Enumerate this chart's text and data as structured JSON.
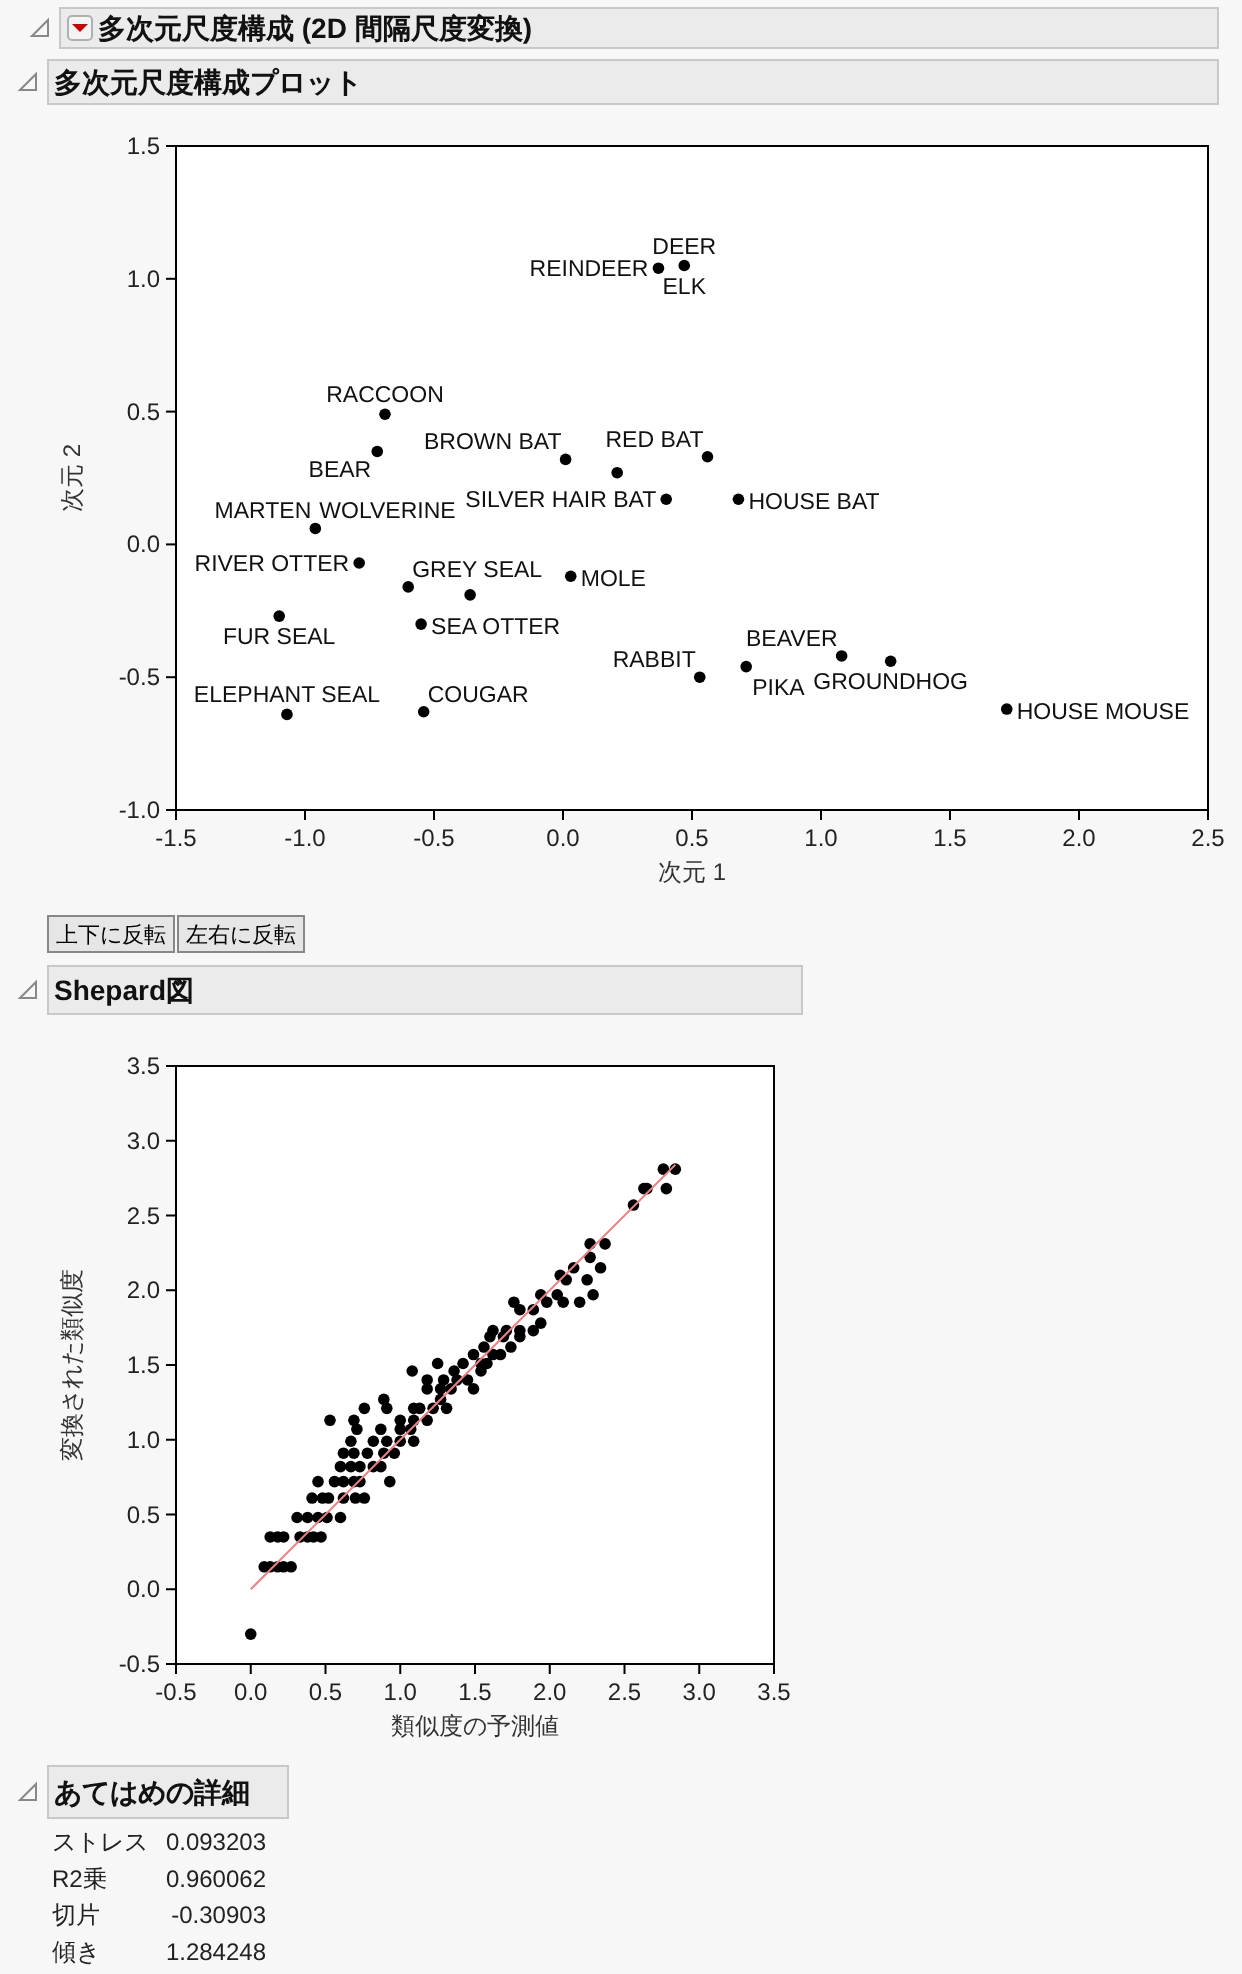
{
  "chart_data": [
    {
      "type": "scatter",
      "title": "多次元尺度構成 (2D 間隔尺度変換)",
      "subtitle": "多次元尺度構成プロット",
      "xlabel": "次元 1",
      "ylabel": "次元 2",
      "xlim": [
        -1.5,
        2.5
      ],
      "ylim": [
        -1.0,
        1.5
      ],
      "xticks": [
        {
          "value": -1.5,
          "label": "-1.5"
        },
        {
          "value": -1.0,
          "label": "-1.0"
        },
        {
          "value": -0.5,
          "label": "-0.5"
        },
        {
          "value": 0.0,
          "label": "0.0"
        },
        {
          "value": 0.5,
          "label": "0.5"
        },
        {
          "value": 1.0,
          "label": "1.0"
        },
        {
          "value": 1.5,
          "label": "1.5"
        },
        {
          "value": 2.0,
          "label": "2.0"
        },
        {
          "value": 2.5,
          "label": "2.5"
        }
      ],
      "yticks": [
        {
          "value": -1.0,
          "label": "-1.0"
        },
        {
          "value": -0.5,
          "label": "-0.5"
        },
        {
          "value": 0.0,
          "label": "0.0"
        },
        {
          "value": 0.5,
          "label": "0.5"
        },
        {
          "value": 1.0,
          "label": "1.0"
        },
        {
          "value": 1.5,
          "label": "1.5"
        }
      ],
      "marker": "circle",
      "grid": false,
      "series": [
        {
          "color": "#000000",
          "x": [
            0.47,
            0.37,
            -0.69,
            -0.72,
            0.01,
            0.21,
            0.56,
            0.4,
            0.68,
            -0.96,
            -0.79,
            -0.6,
            -0.36,
            0.03,
            -1.1,
            -0.55,
            0.53,
            0.71,
            1.08,
            1.27,
            -1.07,
            -0.54,
            1.72
          ],
          "values": [
            1.05,
            1.04,
            0.49,
            0.35,
            0.32,
            0.27,
            0.33,
            0.17,
            0.17,
            0.06,
            -0.07,
            -0.16,
            -0.19,
            -0.12,
            -0.27,
            -0.3,
            -0.5,
            -0.46,
            -0.42,
            -0.44,
            -0.64,
            -0.63,
            -0.62
          ]
        }
      ],
      "annotations": [
        {
          "text": "DEER",
          "x": 0.47,
          "y": 1.05
        },
        {
          "text": "ELK",
          "x": 0.47,
          "y": 1.05
        },
        {
          "text": "REINDEER",
          "x": 0.37,
          "y": 1.04
        },
        {
          "text": "RACCOON",
          "x": -0.69,
          "y": 0.49
        },
        {
          "text": "BEAR",
          "x": -0.72,
          "y": 0.35
        },
        {
          "text": "BROWN BAT",
          "x": 0.01,
          "y": 0.32
        },
        {
          "text": "RED BAT",
          "x": 0.56,
          "y": 0.33
        },
        {
          "text": "SILVER HAIR BAT",
          "x": 0.4,
          "y": 0.17
        },
        {
          "text": "HOUSE BAT",
          "x": 0.68,
          "y": 0.17
        },
        {
          "text": "MARTEN",
          "x": -0.96,
          "y": 0.06
        },
        {
          "text": "WOLVERINE",
          "x": -0.96,
          "y": 0.06
        },
        {
          "text": "RIVER OTTER",
          "x": -0.79,
          "y": -0.07
        },
        {
          "text": "GREY SEAL",
          "x": -0.6,
          "y": -0.16
        },
        {
          "text": "MOLE",
          "x": 0.03,
          "y": -0.12
        },
        {
          "text": "FUR SEAL",
          "x": -1.1,
          "y": -0.27
        },
        {
          "text": "SEA OTTER",
          "x": -0.55,
          "y": -0.3
        },
        {
          "text": "RABBIT",
          "x": 0.53,
          "y": -0.5
        },
        {
          "text": "PIKA",
          "x": 0.71,
          "y": -0.46
        },
        {
          "text": "BEAVER",
          "x": 1.08,
          "y": -0.42
        },
        {
          "text": "GROUNDHOG",
          "x": 1.27,
          "y": -0.44
        },
        {
          "text": "ELEPHANT SEAL",
          "x": -1.07,
          "y": -0.64
        },
        {
          "text": "COUGAR",
          "x": -0.54,
          "y": -0.63
        },
        {
          "text": "HOUSE MOUSE",
          "x": 1.72,
          "y": -0.62
        },
        "上下に反転",
        "左右に反転"
      ]
    },
    {
      "type": "scatter",
      "title": "Shepard図",
      "xlabel": "類似度の予測値",
      "ylabel": "変換された類似度",
      "xlim": [
        -0.5,
        3.5
      ],
      "ylim": [
        -0.5,
        3.5
      ],
      "xticks": [
        {
          "value": -0.5,
          "label": "-0.5"
        },
        {
          "value": 0.0,
          "label": "0.0"
        },
        {
          "value": 0.5,
          "label": "0.5"
        },
        {
          "value": 1.0,
          "label": "1.0"
        },
        {
          "value": 1.5,
          "label": "1.5"
        },
        {
          "value": 2.0,
          "label": "2.0"
        },
        {
          "value": 2.5,
          "label": "2.5"
        },
        {
          "value": 3.0,
          "label": "3.0"
        },
        {
          "value": 3.5,
          "label": "3.5"
        }
      ],
      "yticks": [
        {
          "value": -0.5,
          "label": "-0.5"
        },
        {
          "value": 0.0,
          "label": "0.0"
        },
        {
          "value": 0.5,
          "label": "0.5"
        },
        {
          "value": 1.0,
          "label": "1.0"
        },
        {
          "value": 1.5,
          "label": "1.5"
        },
        {
          "value": 2.0,
          "label": "2.0"
        },
        {
          "value": 2.5,
          "label": "2.5"
        },
        {
          "value": 3.0,
          "label": "3.0"
        },
        {
          "value": 3.5,
          "label": "3.5"
        }
      ],
      "marker": "circle",
      "grid": false,
      "series": [
        {
          "color": "#000000",
          "x": [
            0.0,
            0.09,
            0.13,
            0.18,
            0.22,
            0.27,
            0.13,
            0.18,
            0.22,
            0.33,
            0.38,
            0.42,
            0.47,
            0.31,
            0.38,
            0.45,
            0.51,
            0.6,
            0.41,
            0.48,
            0.52,
            0.62,
            0.7,
            0.76,
            0.45,
            0.56,
            0.62,
            0.69,
            0.73,
            0.93,
            0.6,
            0.67,
            0.73,
            0.82,
            0.87,
            0.62,
            0.69,
            0.78,
            0.89,
            0.96,
            0.67,
            0.82,
            0.91,
            1.0,
            1.09,
            0.71,
            0.87,
            1.0,
            1.07,
            0.53,
            0.69,
            1.0,
            1.09,
            1.18,
            0.76,
            0.91,
            1.09,
            1.13,
            1.22,
            1.31,
            0.89,
            1.27,
            1.18,
            1.27,
            1.34,
            1.49,
            1.18,
            1.29,
            1.38,
            1.45,
            1.08,
            1.36,
            1.54,
            1.25,
            1.42,
            1.54,
            1.58,
            1.49,
            1.62,
            1.67,
            1.56,
            1.74,
            1.6,
            1.69,
            1.8,
            1.62,
            1.71,
            1.8,
            1.89,
            1.94,
            1.8,
            1.89,
            1.76,
            1.98,
            2.09,
            2.2,
            1.94,
            2.05,
            2.29,
            2.11,
            2.25,
            2.07,
            2.16,
            2.34,
            2.27,
            2.27,
            2.37,
            2.56,
            2.63,
            2.65,
            2.78,
            2.76,
            2.84
          ],
          "values": [
            -0.3,
            0.15,
            0.15,
            0.15,
            0.15,
            0.15,
            0.35,
            0.35,
            0.35,
            0.35,
            0.35,
            0.35,
            0.35,
            0.48,
            0.48,
            0.48,
            0.48,
            0.48,
            0.61,
            0.61,
            0.61,
            0.61,
            0.61,
            0.61,
            0.72,
            0.72,
            0.72,
            0.72,
            0.72,
            0.72,
            0.82,
            0.82,
            0.82,
            0.82,
            0.82,
            0.91,
            0.91,
            0.91,
            0.91,
            0.91,
            0.99,
            0.99,
            0.99,
            0.99,
            0.99,
            1.07,
            1.07,
            1.07,
            1.07,
            1.13,
            1.13,
            1.13,
            1.13,
            1.13,
            1.21,
            1.21,
            1.21,
            1.21,
            1.21,
            1.21,
            1.27,
            1.27,
            1.34,
            1.34,
            1.34,
            1.34,
            1.4,
            1.4,
            1.4,
            1.4,
            1.46,
            1.46,
            1.46,
            1.51,
            1.51,
            1.51,
            1.51,
            1.57,
            1.57,
            1.57,
            1.62,
            1.62,
            1.69,
            1.69,
            1.69,
            1.73,
            1.73,
            1.73,
            1.73,
            1.78,
            1.87,
            1.87,
            1.92,
            1.92,
            1.92,
            1.92,
            1.97,
            1.97,
            1.97,
            2.07,
            2.07,
            2.1,
            2.15,
            2.15,
            2.22,
            2.31,
            2.31,
            2.57,
            2.68,
            2.68,
            2.68,
            2.81,
            2.81
          ]
        },
        {
          "type": "line",
          "marker": "none",
          "color": "#f08080",
          "x": [
            0.0,
            2.84
          ],
          "values": [
            0.0,
            2.84
          ]
        }
      ]
    },
    {
      "type": "other",
      "title": "あてはめの詳細",
      "annotations": [
        "ストレス",
        "0.093203",
        "R2乗",
        "0.960062",
        "切片",
        "-0.30903",
        "傾き",
        "1.284248"
      ]
    }
  ]
}
